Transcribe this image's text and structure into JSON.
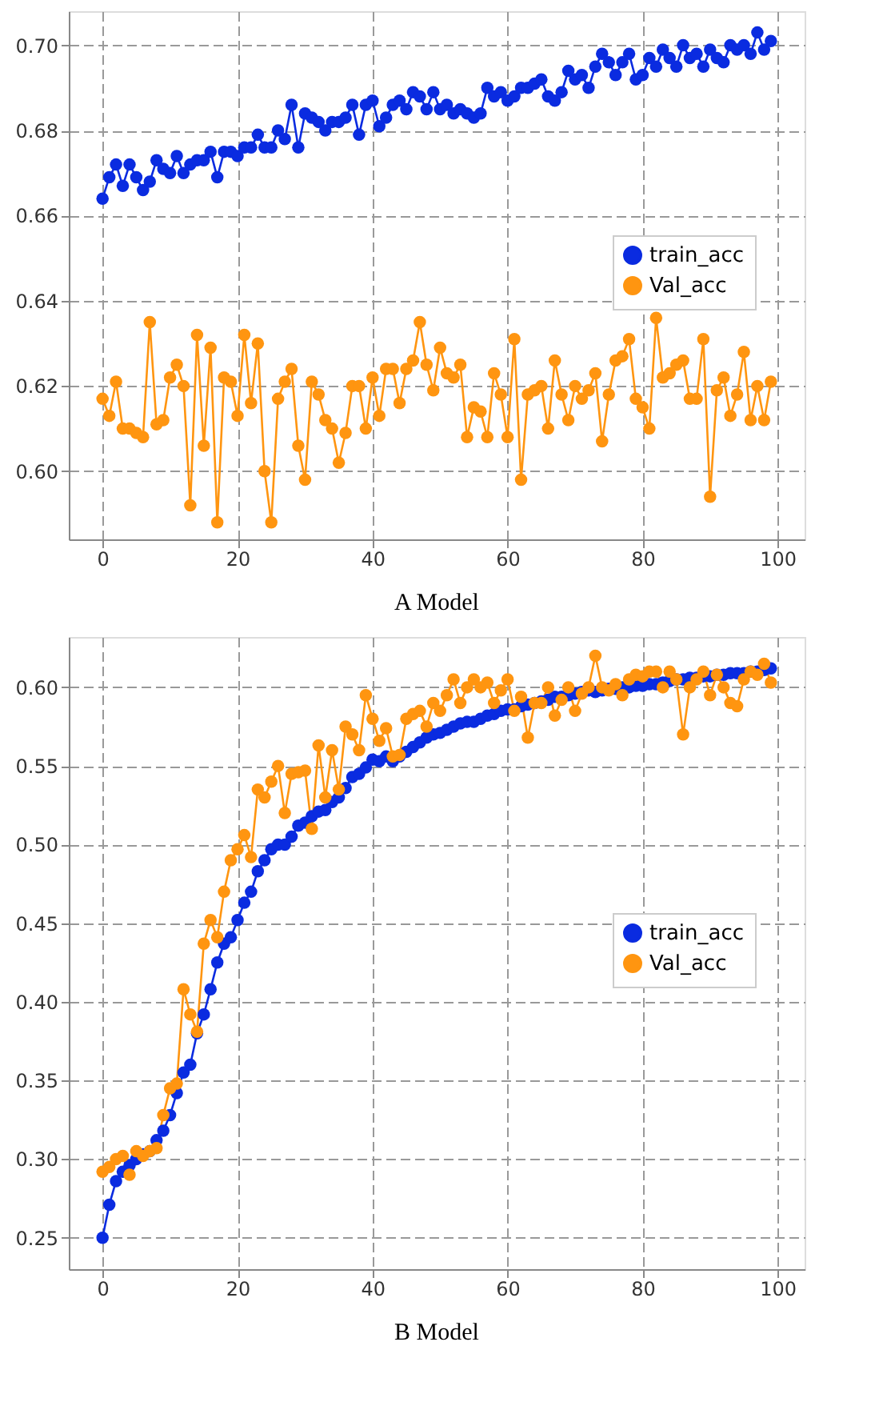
{
  "chart_data": [
    {
      "type": "line",
      "title": "A Model",
      "x": [
        0,
        1,
        2,
        3,
        4,
        5,
        6,
        7,
        8,
        9,
        10,
        11,
        12,
        13,
        14,
        15,
        16,
        17,
        18,
        19,
        20,
        21,
        22,
        23,
        24,
        25,
        26,
        27,
        28,
        29,
        30,
        31,
        32,
        33,
        34,
        35,
        36,
        37,
        38,
        39,
        40,
        41,
        42,
        43,
        44,
        45,
        46,
        47,
        48,
        49,
        50,
        51,
        52,
        53,
        54,
        55,
        56,
        57,
        58,
        59,
        60,
        61,
        62,
        63,
        64,
        65,
        66,
        67,
        68,
        69,
        70,
        71,
        72,
        73,
        74,
        75,
        76,
        77,
        78,
        79,
        80,
        81,
        82,
        83,
        84,
        85,
        86,
        87,
        88,
        89,
        90,
        91,
        92,
        93,
        94,
        95,
        96,
        97,
        98,
        99
      ],
      "series": [
        {
          "name": "train_acc",
          "color": "#0a2be0",
          "values": [
            0.664,
            0.669,
            0.672,
            0.667,
            0.672,
            0.669,
            0.666,
            0.668,
            0.673,
            0.671,
            0.67,
            0.674,
            0.67,
            0.672,
            0.673,
            0.673,
            0.675,
            0.669,
            0.675,
            0.675,
            0.674,
            0.676,
            0.676,
            0.679,
            0.676,
            0.676,
            0.68,
            0.678,
            0.686,
            0.676,
            0.684,
            0.683,
            0.682,
            0.68,
            0.682,
            0.682,
            0.683,
            0.686,
            0.679,
            0.686,
            0.687,
            0.681,
            0.683,
            0.686,
            0.687,
            0.685,
            0.689,
            0.688,
            0.685,
            0.689,
            0.685,
            0.686,
            0.684,
            0.685,
            0.684,
            0.683,
            0.684,
            0.69,
            0.688,
            0.689,
            0.687,
            0.688,
            0.69,
            0.69,
            0.691,
            0.692,
            0.688,
            0.687,
            0.689,
            0.694,
            0.692,
            0.693,
            0.69,
            0.695,
            0.698,
            0.696,
            0.693,
            0.696,
            0.698,
            0.692,
            0.693,
            0.697,
            0.695,
            0.699,
            0.697,
            0.695,
            0.7,
            0.697,
            0.698,
            0.695,
            0.699,
            0.697,
            0.696,
            0.7,
            0.699,
            0.7,
            0.698,
            0.703,
            0.699,
            0.701
          ]
        },
        {
          "name": "Val_acc",
          "color": "#ff9510",
          "values": [
            0.617,
            0.613,
            0.621,
            0.61,
            0.61,
            0.609,
            0.608,
            0.635,
            0.611,
            0.612,
            0.622,
            0.625,
            0.62,
            0.592,
            0.632,
            0.606,
            0.629,
            0.588,
            0.622,
            0.621,
            0.613,
            0.632,
            0.616,
            0.63,
            0.6,
            0.588,
            0.617,
            0.621,
            0.624,
            0.606,
            0.598,
            0.621,
            0.618,
            0.612,
            0.61,
            0.602,
            0.609,
            0.62,
            0.62,
            0.61,
            0.622,
            0.613,
            0.624,
            0.624,
            0.616,
            0.624,
            0.626,
            0.635,
            0.625,
            0.619,
            0.629,
            0.623,
            0.622,
            0.625,
            0.608,
            0.615,
            0.614,
            0.608,
            0.623,
            0.618,
            0.608,
            0.631,
            0.598,
            0.618,
            0.619,
            0.62,
            0.61,
            0.626,
            0.618,
            0.612,
            0.62,
            0.617,
            0.619,
            0.623,
            0.607,
            0.618,
            0.626,
            0.627,
            0.631,
            0.617,
            0.615,
            0.61,
            0.636,
            0.622,
            0.623,
            0.625,
            0.626,
            0.617,
            0.617,
            0.631,
            0.594,
            0.619,
            0.622,
            0.613,
            0.618,
            0.628,
            0.612,
            0.62,
            0.612,
            0.621
          ]
        }
      ],
      "xlim": [
        -5,
        104
      ],
      "xticks": [
        0,
        20,
        40,
        60,
        80,
        100
      ],
      "ylim": [
        0.584,
        0.708
      ],
      "yticks": [
        {
          "value": 0.6,
          "label": "0.60"
        },
        0.62,
        0.64,
        0.66,
        0.68,
        {
          "value": 0.7,
          "label": "0.70"
        }
      ],
      "grid": true,
      "legend": "right",
      "marker": "circle",
      "line_style": "solid"
    },
    {
      "type": "line",
      "title": "B Model",
      "x": [
        0,
        1,
        2,
        3,
        4,
        5,
        6,
        7,
        8,
        9,
        10,
        11,
        12,
        13,
        14,
        15,
        16,
        17,
        18,
        19,
        20,
        21,
        22,
        23,
        24,
        25,
        26,
        27,
        28,
        29,
        30,
        31,
        32,
        33,
        34,
        35,
        36,
        37,
        38,
        39,
        40,
        41,
        42,
        43,
        44,
        45,
        46,
        47,
        48,
        49,
        50,
        51,
        52,
        53,
        54,
        55,
        56,
        57,
        58,
        59,
        60,
        61,
        62,
        63,
        64,
        65,
        66,
        67,
        68,
        69,
        70,
        71,
        72,
        73,
        74,
        75,
        76,
        77,
        78,
        79,
        80,
        81,
        82,
        83,
        84,
        85,
        86,
        87,
        88,
        89,
        90,
        91,
        92,
        93,
        94,
        95,
        96,
        97,
        98,
        99
      ],
      "series": [
        {
          "name": "train_acc",
          "color": "#0a2be0",
          "values": [
            0.25,
            0.271,
            0.286,
            0.292,
            0.296,
            0.3,
            0.303,
            0.305,
            0.312,
            0.318,
            0.328,
            0.342,
            0.355,
            0.36,
            0.38,
            0.392,
            0.408,
            0.425,
            0.437,
            0.441,
            0.452,
            0.463,
            0.47,
            0.483,
            0.49,
            0.497,
            0.5,
            0.5,
            0.505,
            0.512,
            0.514,
            0.518,
            0.521,
            0.522,
            0.527,
            0.53,
            0.536,
            0.543,
            0.545,
            0.549,
            0.554,
            0.553,
            0.556,
            0.553,
            0.556,
            0.559,
            0.562,
            0.565,
            0.568,
            0.57,
            0.571,
            0.573,
            0.575,
            0.577,
            0.578,
            0.578,
            0.58,
            0.582,
            0.583,
            0.585,
            0.586,
            0.586,
            0.588,
            0.589,
            0.59,
            0.591,
            0.592,
            0.594,
            0.594,
            0.595,
            0.596,
            0.597,
            0.598,
            0.597,
            0.598,
            0.599,
            0.599,
            0.6,
            0.6,
            0.601,
            0.601,
            0.602,
            0.602,
            0.603,
            0.604,
            0.605,
            0.605,
            0.606,
            0.606,
            0.607,
            0.607,
            0.608,
            0.608,
            0.609,
            0.609,
            0.609,
            0.61,
            0.61,
            0.611,
            0.612
          ]
        },
        {
          "name": "Val_acc",
          "color": "#ff9510",
          "values": [
            0.292,
            0.295,
            0.3,
            0.302,
            0.29,
            0.305,
            0.302,
            0.305,
            0.307,
            0.328,
            0.345,
            0.348,
            0.408,
            0.392,
            0.381,
            0.437,
            0.452,
            0.441,
            0.47,
            0.49,
            0.497,
            0.506,
            0.492,
            0.535,
            0.53,
            0.54,
            0.55,
            0.52,
            0.545,
            0.546,
            0.547,
            0.51,
            0.563,
            0.53,
            0.56,
            0.535,
            0.575,
            0.57,
            0.56,
            0.595,
            0.58,
            0.566,
            0.574,
            0.556,
            0.557,
            0.58,
            0.583,
            0.585,
            0.575,
            0.59,
            0.585,
            0.595,
            0.605,
            0.59,
            0.6,
            0.605,
            0.6,
            0.603,
            0.59,
            0.598,
            0.605,
            0.585,
            0.594,
            0.568,
            0.59,
            0.59,
            0.6,
            0.582,
            0.592,
            0.6,
            0.585,
            0.596,
            0.6,
            0.62,
            0.6,
            0.598,
            0.602,
            0.595,
            0.605,
            0.608,
            0.607,
            0.61,
            0.61,
            0.6,
            0.61,
            0.605,
            0.57,
            0.6,
            0.605,
            0.61,
            0.595,
            0.608,
            0.6,
            0.59,
            0.588,
            0.605,
            0.61,
            0.608,
            0.615,
            0.603
          ]
        }
      ],
      "xlim": [
        -5,
        104
      ],
      "xticks": [
        0,
        20,
        40,
        60,
        80,
        100
      ],
      "ylim": [
        0.23,
        0.632
      ],
      "yticks": [
        0.25,
        {
          "value": 0.3,
          "label": "0.30"
        },
        0.35,
        {
          "value": 0.4,
          "label": "0.40"
        },
        0.45,
        {
          "value": 0.5,
          "label": "0.50"
        },
        0.55,
        {
          "value": 0.6,
          "label": "0.60"
        }
      ],
      "grid": true,
      "legend": "right",
      "marker": "circle",
      "line_style": "solid"
    }
  ]
}
